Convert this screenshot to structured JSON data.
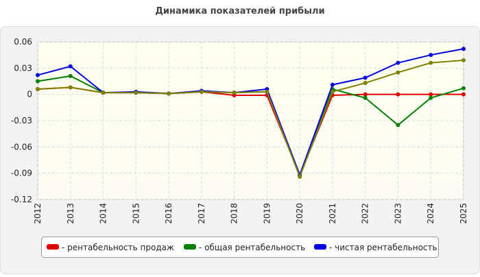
{
  "chart_data": {
    "type": "line",
    "title": "Динамика показателей прибыли",
    "categories": [
      "2012",
      "2013",
      "2014",
      "2015",
      "2016",
      "2017",
      "2018",
      "2019",
      "2020",
      "2021",
      "2022",
      "2023",
      "2024",
      "2025"
    ],
    "ylim": [
      -0.12,
      0.06
    ],
    "yticks": [
      -0.12,
      -0.09,
      -0.06,
      -0.03,
      0,
      0.03,
      0.06
    ],
    "grid": true,
    "legend": "bottom",
    "series": [
      {
        "name": "- рентабельность продаж",
        "color": "#e00000",
        "values": [
          0.006,
          0.008,
          0.002,
          0.002,
          0.001,
          0.003,
          -0.001,
          -0.001,
          -0.092,
          -0.001,
          0,
          0,
          0,
          0
        ]
      },
      {
        "name": "- общая рентабельность",
        "color": "#008000",
        "values": [
          0.015,
          0.021,
          0.002,
          0.002,
          0.001,
          0.003,
          0.002,
          0.003,
          -0.092,
          0.006,
          -0.004,
          -0.035,
          -0.004,
          0.007
        ]
      },
      {
        "name": "- чистая рентабельность",
        "color": "#0000e0",
        "values": [
          0.022,
          0.032,
          0.002,
          0.003,
          0.001,
          0.004,
          0.002,
          0.006,
          -0.092,
          0.011,
          0.019,
          0.036,
          0.045,
          0.052
        ]
      },
      {
        "color": "#808000",
        "values": [
          0.006,
          0.008,
          0.002,
          0.002,
          0.001,
          0.003,
          0.002,
          0.003,
          -0.094,
          0.003,
          0.013,
          0.025,
          0.036,
          0.039
        ]
      }
    ]
  }
}
